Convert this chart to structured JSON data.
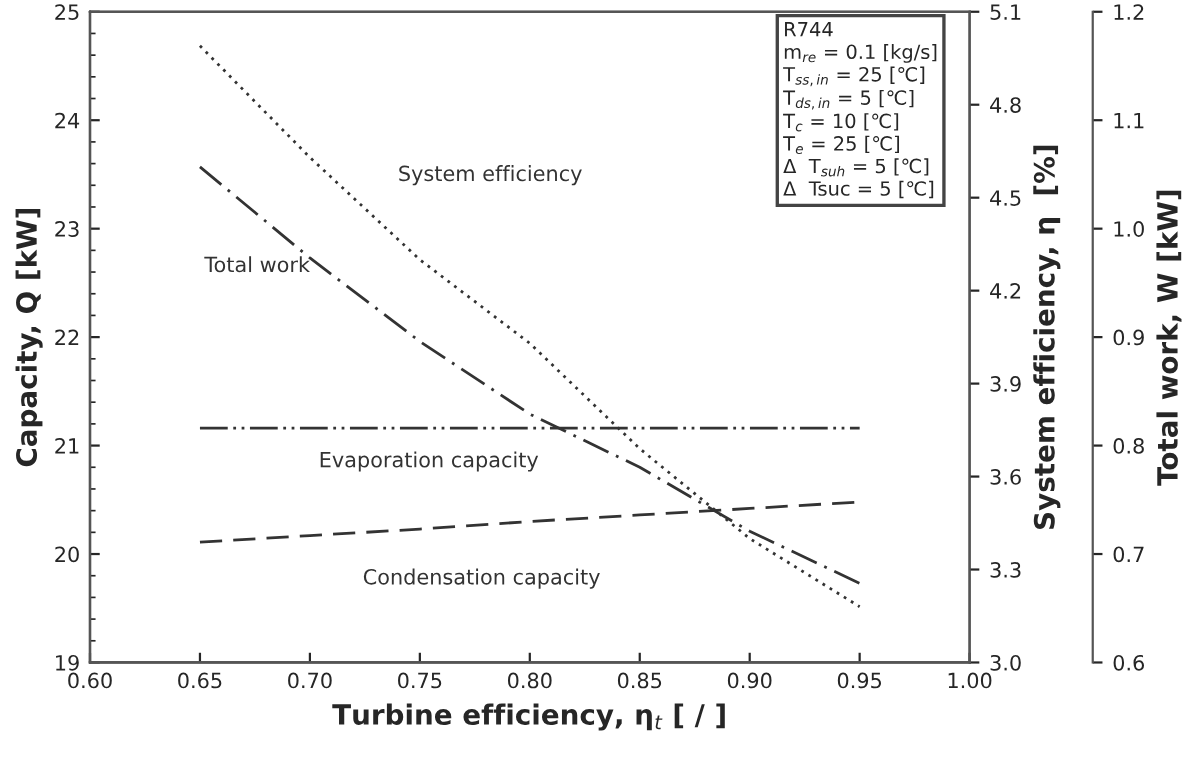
{
  "chart_data": {
    "type": "line",
    "xlabel": "Turbine efficiency, η$_{t}$ [ / ]",
    "ylabel": "Capacity, Q [kW]",
    "y2label": "System efficiency, η  [%]",
    "y3label": "Total work, W [kW]",
    "x": [
      0.65,
      0.7,
      0.75,
      0.8,
      0.85,
      0.9,
      0.95
    ],
    "series": [
      {
        "name": "System efficiency",
        "color": "#333333",
        "axis": "y2",
        "line_style": "dotted",
        "values": [
          4.99,
          4.63,
          4.3,
          4.03,
          3.69,
          3.4,
          3.18
        ]
      },
      {
        "name": "Total work",
        "color": "#333333",
        "axis": "y3",
        "line_style": "dashdot",
        "values": [
          1.057,
          0.973,
          0.896,
          0.829,
          0.78,
          0.721,
          0.673
        ]
      },
      {
        "name": "Evaporation capacity",
        "color": "#333333",
        "line_style": "dashdotdot",
        "values": [
          21.16,
          21.16,
          21.16,
          21.16,
          21.16,
          21.16,
          21.16
        ]
      },
      {
        "name": "Condensation capacity",
        "color": "#333333",
        "line_style": "dashed",
        "values": [
          20.11,
          20.17,
          20.23,
          20.3,
          20.36,
          20.42,
          20.48
        ]
      }
    ],
    "xlim": [
      0.6,
      1.0
    ],
    "xticks": [
      {
        "value": 0.6,
        "label": "0.60"
      },
      {
        "value": 0.65,
        "label": "0.65"
      },
      {
        "value": 0.7,
        "label": "0.70"
      },
      {
        "value": 0.75,
        "label": "0.75"
      },
      {
        "value": 0.8,
        "label": "0.80"
      },
      {
        "value": 0.85,
        "label": "0.85"
      },
      {
        "value": 0.9,
        "label": "0.90"
      },
      {
        "value": 0.95,
        "label": "0.95"
      },
      {
        "value": 1.0,
        "label": "1.00"
      }
    ],
    "ylim": [
      19,
      25
    ],
    "yticks": [
      19,
      20,
      21,
      22,
      23,
      24,
      25
    ],
    "y2lim": [
      3.0,
      5.1
    ],
    "y2ticks": [
      {
        "value": 3.0,
        "label": "3.0"
      },
      3.3,
      3.6,
      3.9,
      4.2,
      4.5,
      4.8,
      5.1
    ],
    "y3lim": [
      0.6,
      1.2
    ],
    "y3ticks": [
      0.6,
      0.7,
      0.8,
      0.9,
      {
        "value": 1.0,
        "label": "1.0"
      },
      1.1,
      1.2
    ],
    "annotations": [
      "R744\nm$_{re}$ = 0.1 [kg/s]\nT$_{ss,in}$ = 25 [℃]\nT$_{ds,in}$ = 5 [℃]\nT$_{c}$ = 10 [℃]\nT$_{e}$ = 25 [℃]\nΔ  T$_{suh}$ = 5 [℃]\nΔ  Tsuc = 5 [℃]"
    ],
    "grid": false,
    "legend": false
  }
}
